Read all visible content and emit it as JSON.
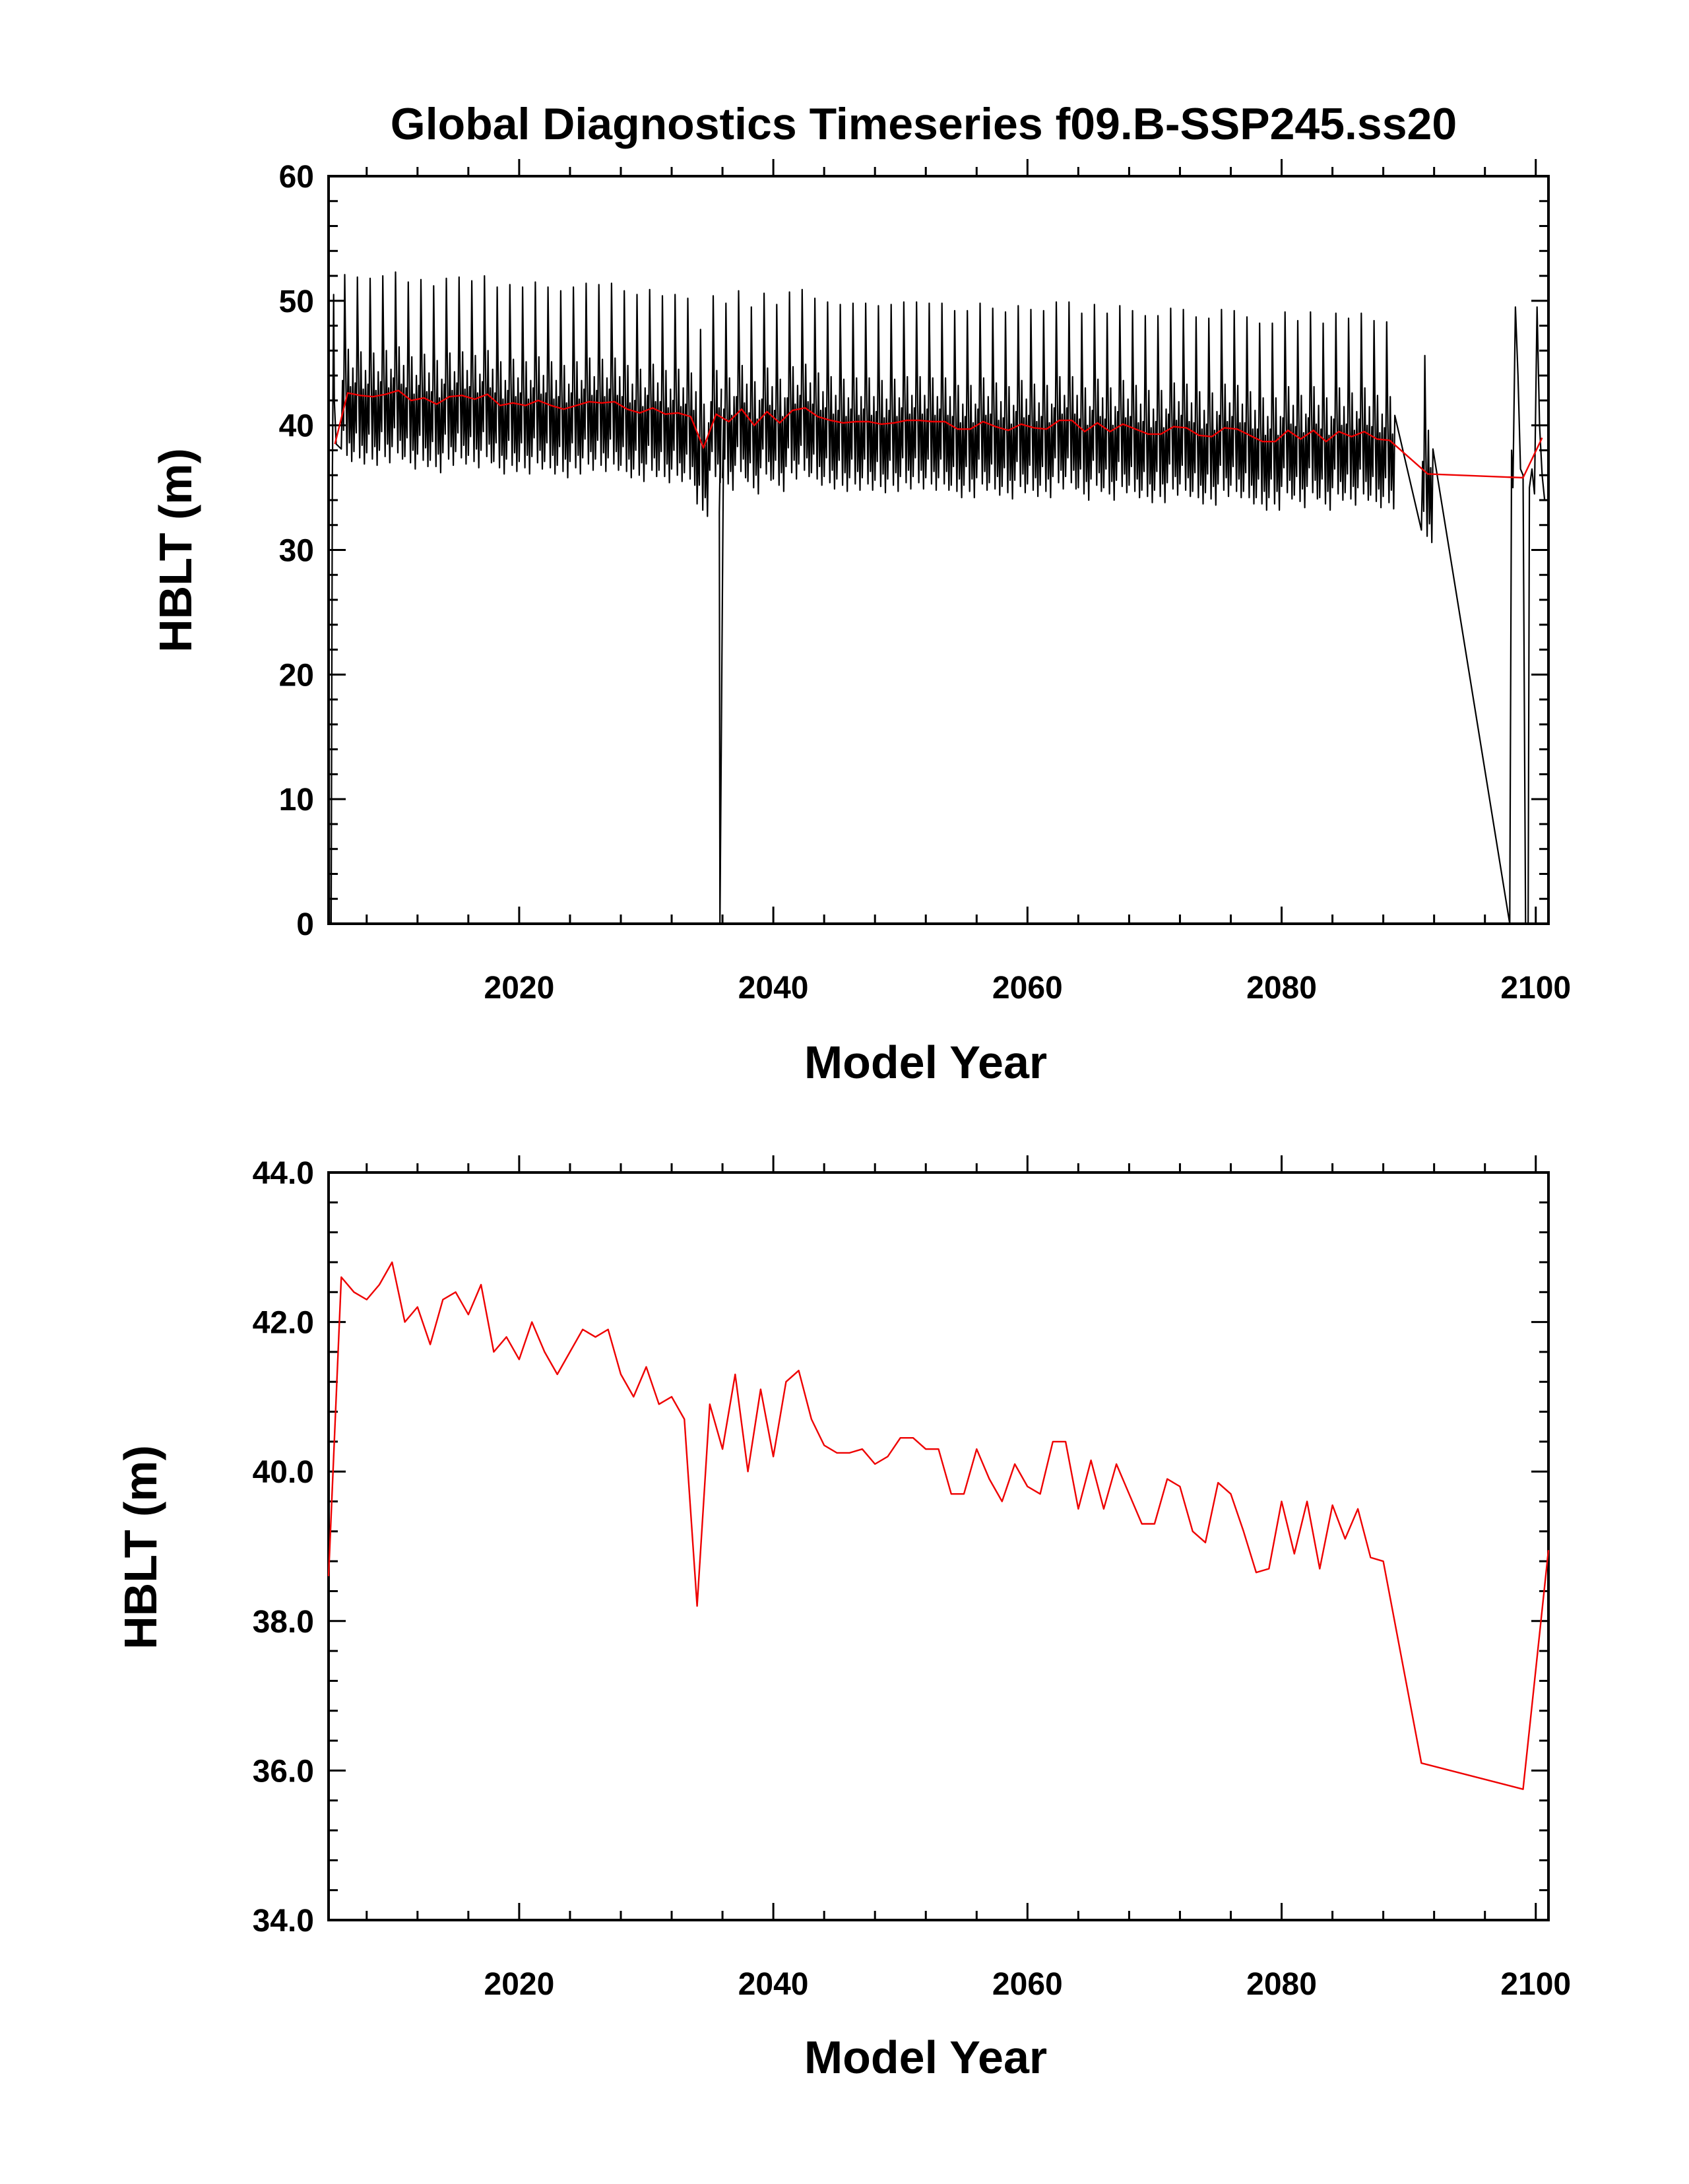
{
  "title": "Global Diagnostics Timeseries f09.B-SSP245.ss20",
  "colors": {
    "monthly": "#000000",
    "annual": "#ee0000",
    "axes": "#000000",
    "background": "#ffffff"
  },
  "chart_data": [
    {
      "type": "line",
      "panel": "top",
      "title": "Global Diagnostics Timeseries f09.B-SSP245.ss20",
      "xlabel": "Model Year",
      "ylabel": "HBLT (m)",
      "xlim": [
        2005,
        2101
      ],
      "ylim": [
        0,
        60
      ],
      "x_ticks": [
        2020,
        2040,
        2060,
        2080,
        2100
      ],
      "y_ticks": [
        0,
        10,
        20,
        30,
        40,
        50,
        60
      ],
      "x_tick_labels": [
        "2020",
        "2040",
        "2060",
        "2080",
        "2100"
      ],
      "y_tick_labels": [
        "0",
        "10",
        "20",
        "30",
        "40",
        "50",
        "60"
      ],
      "grid": false,
      "series": [
        {
          "kind": "monthly",
          "color": "#000000",
          "x": [
            2005.0,
            2005.08,
            2005.2,
            2005.3,
            2005.4,
            2005.45,
            2005.6,
            2097.95,
            2098.1,
            2098.2,
            2098.4,
            2098.6,
            2098.8,
            2099.0,
            2099.2,
            2099.4,
            2099.5,
            2099.7,
            2099.9,
            2100.1,
            2100.3,
            2100.5,
            2100.7,
            2100.9
          ],
          "y": [
            40.5,
            0.0,
            0.0,
            36.0,
            50.5,
            42.0,
            38.5,
            0.0,
            38.0,
            35.0,
            49.5,
            44.0,
            36.5,
            36.0,
            0.0,
            0.0,
            35.0,
            36.5,
            34.5,
            49.5,
            40.0,
            36.0,
            34.0,
            34.0
          ]
        },
        {
          "kind": "annual",
          "color": "#ee0000",
          "x": [
            2005.5,
            2006.5,
            2007.5,
            2008.5,
            2009.5,
            2010.5,
            2011.5,
            2012.5,
            2013.5,
            2014.5,
            2015.5,
            2016.5,
            2017.5,
            2018.5,
            2019.5,
            2020.5,
            2021.5,
            2022.5,
            2023.5,
            2024.5,
            2025.5,
            2026.5,
            2027.5,
            2028.5,
            2029.5,
            2030.5,
            2031.5,
            2032.5,
            2033.5,
            2034.5,
            2035.5,
            2036.5,
            2037.5,
            2038.5,
            2039.5,
            2040.5,
            2041.5,
            2042.5,
            2043.5,
            2044.5,
            2045.5,
            2046.5,
            2047.5,
            2048.5,
            2049.5,
            2050.5,
            2051.5,
            2052.5,
            2053.5,
            2054.5,
            2055.5,
            2056.5,
            2057.5,
            2058.5,
            2059.5,
            2060.5,
            2061.5,
            2062.5,
            2063.5,
            2064.5,
            2065.5,
            2066.5,
            2067.5,
            2068.5,
            2069.5,
            2070.5,
            2071.5,
            2072.5,
            2073.5,
            2074.5,
            2075.5,
            2076.5,
            2077.5,
            2078.5,
            2079.5,
            2080.5,
            2081.5,
            2082.5,
            2083.5,
            2084.5,
            2085.5,
            2086.5,
            2087.5,
            2088.5,
            2091.5,
            2099.0,
            2100.5
          ],
          "y": [
            38.5,
            42.6,
            42.4,
            42.3,
            42.5,
            42.8,
            42.0,
            42.2,
            41.7,
            42.3,
            42.4,
            42.1,
            42.5,
            41.6,
            41.8,
            41.6,
            42.0,
            41.6,
            41.3,
            41.6,
            41.9,
            41.8,
            41.9,
            41.3,
            41.0,
            41.4,
            40.9,
            41.0,
            40.7,
            38.2,
            40.9,
            40.3,
            41.3,
            40.0,
            41.1,
            40.2,
            41.2,
            41.4,
            40.7,
            40.4,
            40.2,
            40.3,
            40.3,
            40.1,
            40.2,
            40.4,
            40.4,
            40.3,
            40.3,
            39.7,
            39.7,
            40.3,
            39.9,
            39.6,
            40.1,
            39.8,
            39.7,
            40.4,
            40.4,
            39.5,
            40.2,
            39.5,
            40.1,
            39.7,
            39.3,
            39.3,
            39.9,
            39.8,
            39.2,
            39.1,
            39.8,
            39.7,
            39.2,
            38.7,
            38.7,
            39.6,
            38.9,
            39.6,
            38.7,
            39.5,
            39.1,
            39.5,
            38.9,
            38.8,
            36.1,
            35.8,
            39.0
          ]
        }
      ]
    },
    {
      "type": "line",
      "panel": "bottom",
      "title": "",
      "xlabel": "Model Year",
      "ylabel": "HBLT (m)",
      "xlim": [
        2005,
        2101
      ],
      "ylim": [
        34,
        44
      ],
      "x_ticks": [
        2020,
        2040,
        2060,
        2080,
        2100
      ],
      "y_ticks": [
        34,
        36,
        38,
        40,
        42,
        44
      ],
      "x_tick_labels": [
        "2020",
        "2040",
        "2060",
        "2080",
        "2100"
      ],
      "y_tick_labels": [
        "34.0",
        "36.0",
        "38.0",
        "40.0",
        "42.0",
        "44.0"
      ],
      "grid": false,
      "series": [
        {
          "kind": "annual",
          "color": "#ee0000",
          "x": [
            2005.0,
            2006.0,
            2007.0,
            2008.0,
            2009.0,
            2010.0,
            2011.0,
            2012.0,
            2013.0,
            2014.0,
            2015.0,
            2016.0,
            2017.0,
            2018.0,
            2019.0,
            2020.0,
            2021.0,
            2022.0,
            2023.0,
            2024.0,
            2025.0,
            2026.0,
            2027.0,
            2028.0,
            2029.0,
            2030.0,
            2031.0,
            2032.0,
            2033.0,
            2034.0,
            2035.0,
            2036.0,
            2037.0,
            2038.0,
            2039.0,
            2040.0,
            2041.0,
            2042.0,
            2043.0,
            2044.0,
            2045.0,
            2046.0,
            2047.0,
            2048.0,
            2049.0,
            2050.0,
            2051.0,
            2052.0,
            2053.0,
            2054.0,
            2055.0,
            2056.0,
            2057.0,
            2058.0,
            2059.0,
            2060.0,
            2061.0,
            2062.0,
            2063.0,
            2064.0,
            2065.0,
            2066.0,
            2067.0,
            2068.0,
            2069.0,
            2070.0,
            2071.0,
            2072.0,
            2073.0,
            2074.0,
            2075.0,
            2076.0,
            2077.0,
            2078.0,
            2079.0,
            2080.0,
            2081.0,
            2082.0,
            2083.0,
            2084.0,
            2085.0,
            2086.0,
            2087.0,
            2088.0,
            2091.0,
            2099.0,
            2101.0
          ],
          "y": [
            38.6,
            42.6,
            42.4,
            42.3,
            42.5,
            42.8,
            42.0,
            42.2,
            41.7,
            42.3,
            42.4,
            42.1,
            42.5,
            41.6,
            41.8,
            41.5,
            42.0,
            41.6,
            41.3,
            41.6,
            41.9,
            41.8,
            41.9,
            41.3,
            41.0,
            41.4,
            40.9,
            41.0,
            40.7,
            38.2,
            40.9,
            40.3,
            41.3,
            40.0,
            41.1,
            40.2,
            41.2,
            41.35,
            40.7,
            40.35,
            40.25,
            40.25,
            40.3,
            40.1,
            40.2,
            40.45,
            40.45,
            40.3,
            40.3,
            39.7,
            39.7,
            40.3,
            39.9,
            39.6,
            40.1,
            39.8,
            39.7,
            40.4,
            40.4,
            39.5,
            40.15,
            39.5,
            40.1,
            39.7,
            39.3,
            39.3,
            39.9,
            39.8,
            39.2,
            39.05,
            39.85,
            39.7,
            39.2,
            38.65,
            38.7,
            39.6,
            38.9,
            39.6,
            38.7,
            39.55,
            39.1,
            39.5,
            38.85,
            38.8,
            36.1,
            35.75,
            38.95
          ]
        }
      ]
    }
  ]
}
